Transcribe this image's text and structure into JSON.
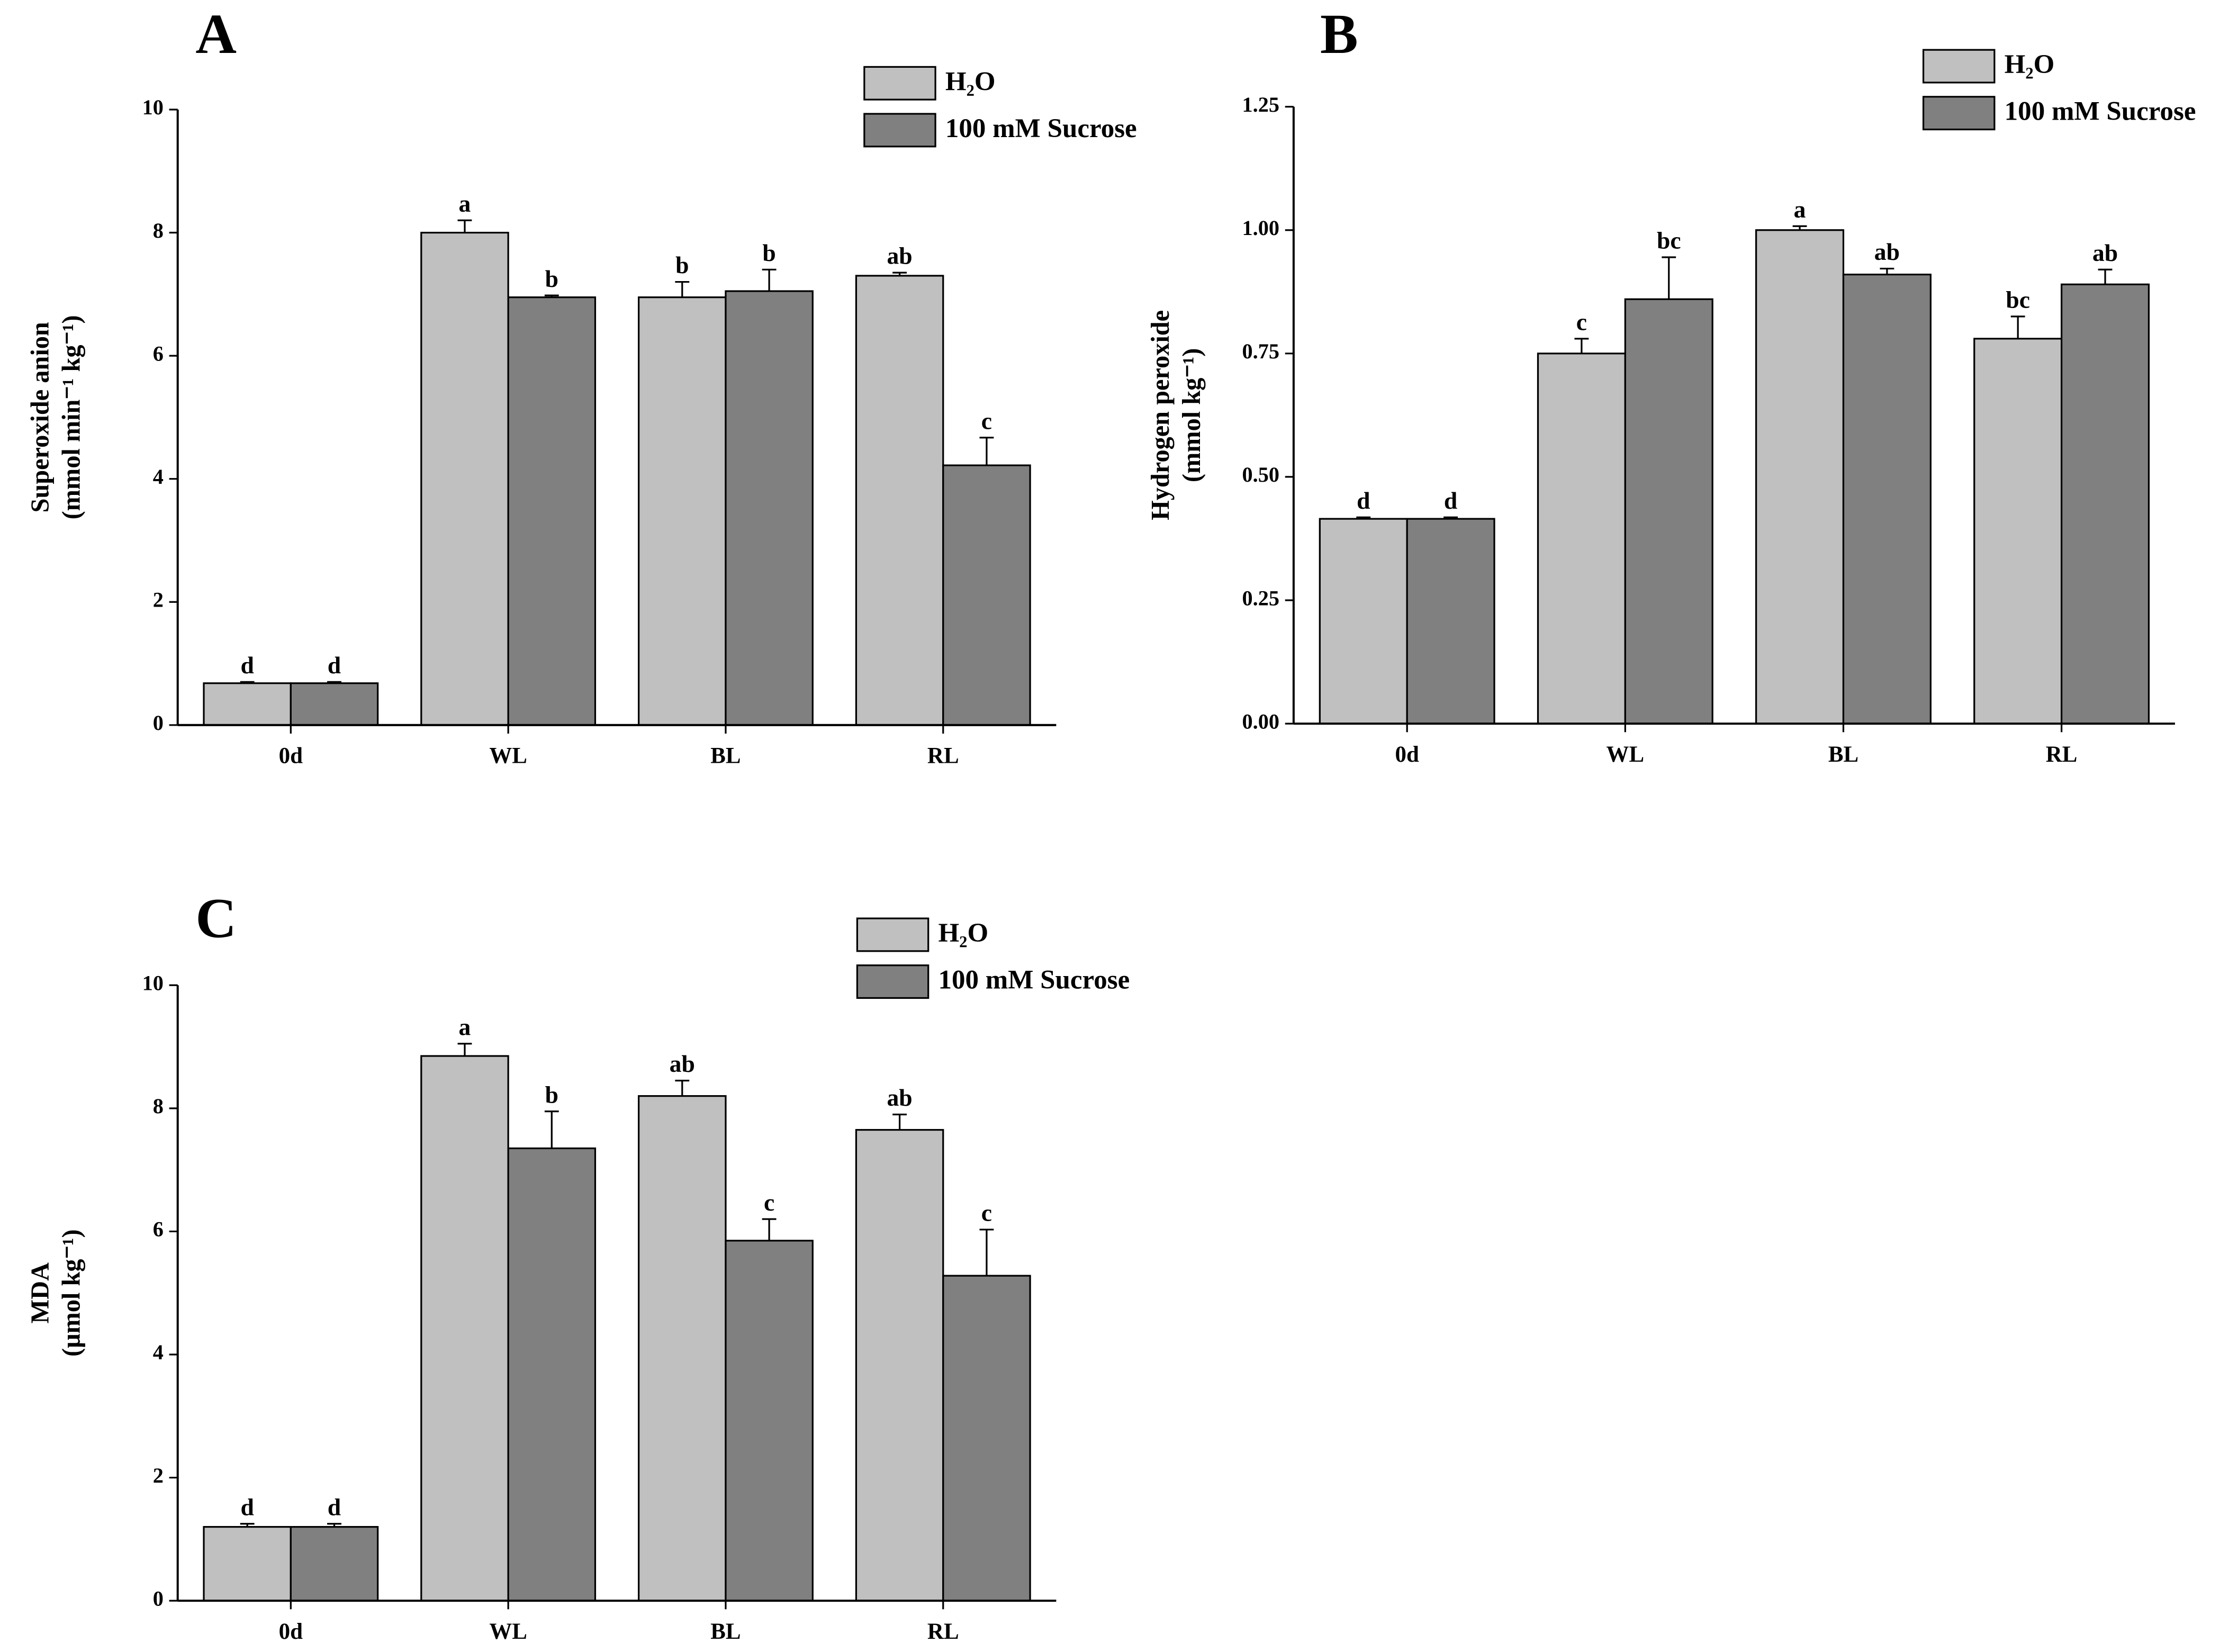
{
  "chart_data": [
    {
      "type": "bar",
      "panel": "A",
      "ylabel": [
        "Superoxide anion",
        "(mmol min⁻¹ kg⁻¹)"
      ],
      "categories": [
        "0d",
        "WL",
        "BL",
        "RL"
      ],
      "ylim": [
        0,
        10
      ],
      "yticks": [
        0,
        2,
        4,
        6,
        8,
        10
      ],
      "legend": "upper right",
      "series": [
        {
          "name": "H₂O",
          "color": "#c0c0c0",
          "values": [
            0.68,
            8.0,
            6.95,
            7.3
          ],
          "errors": [
            0.02,
            0.2,
            0.25,
            0.05
          ],
          "annotations": [
            "d",
            "a",
            "b",
            "ab"
          ]
        },
        {
          "name": "100 mM Sucrose",
          "color": "#808080",
          "values": [
            0.68,
            6.95,
            7.05,
            4.22
          ],
          "errors": [
            0.02,
            0.03,
            0.35,
            0.45
          ],
          "annotations": [
            "d",
            "b",
            "b",
            "c"
          ]
        }
      ]
    },
    {
      "type": "bar",
      "panel": "B",
      "ylabel": [
        "Hydrogen peroxide",
        "(mmol kg⁻¹)"
      ],
      "categories": [
        "0d",
        "WL",
        "BL",
        "RL"
      ],
      "ylim": [
        0,
        1.25
      ],
      "yticks": [
        {
          "value": 0,
          "label": "0.00"
        },
        0.25,
        {
          "value": 0.5,
          "label": "0.50"
        },
        0.75,
        {
          "value": 1,
          "label": "1.00"
        },
        1.25
      ],
      "legend": "upper right",
      "series": [
        {
          "name": "H₂O",
          "color": "#c0c0c0",
          "values": [
            0.415,
            0.75,
            1.0,
            0.78
          ],
          "errors": [
            0.003,
            0.03,
            0.008,
            0.045
          ],
          "annotations": [
            "d",
            "c",
            "a",
            "bc"
          ]
        },
        {
          "name": "100 mM Sucrose",
          "color": "#808080",
          "values": [
            0.415,
            0.86,
            0.91,
            0.89
          ],
          "errors": [
            0.003,
            0.085,
            0.012,
            0.03
          ],
          "annotations": [
            "d",
            "bc",
            "ab",
            "ab"
          ]
        }
      ]
    },
    {
      "type": "bar",
      "panel": "C",
      "ylabel": [
        "MDA",
        "(μmol kg⁻¹)"
      ],
      "categories": [
        "0d",
        "WL",
        "BL",
        "RL"
      ],
      "ylim": [
        0,
        10
      ],
      "yticks": [
        0,
        2,
        4,
        6,
        8,
        10
      ],
      "legend": "upper right",
      "series": [
        {
          "name": "H₂O",
          "color": "#c0c0c0",
          "values": [
            1.2,
            8.85,
            8.2,
            7.65
          ],
          "errors": [
            0.05,
            0.2,
            0.25,
            0.25
          ],
          "annotations": [
            "d",
            "a",
            "ab",
            "ab"
          ]
        },
        {
          "name": "100 mM Sucrose",
          "color": "#808080",
          "values": [
            1.2,
            7.35,
            5.85,
            5.28
          ],
          "errors": [
            0.05,
            0.6,
            0.35,
            0.75
          ],
          "annotations": [
            "d",
            "b",
            "c",
            "c"
          ]
        }
      ]
    }
  ]
}
